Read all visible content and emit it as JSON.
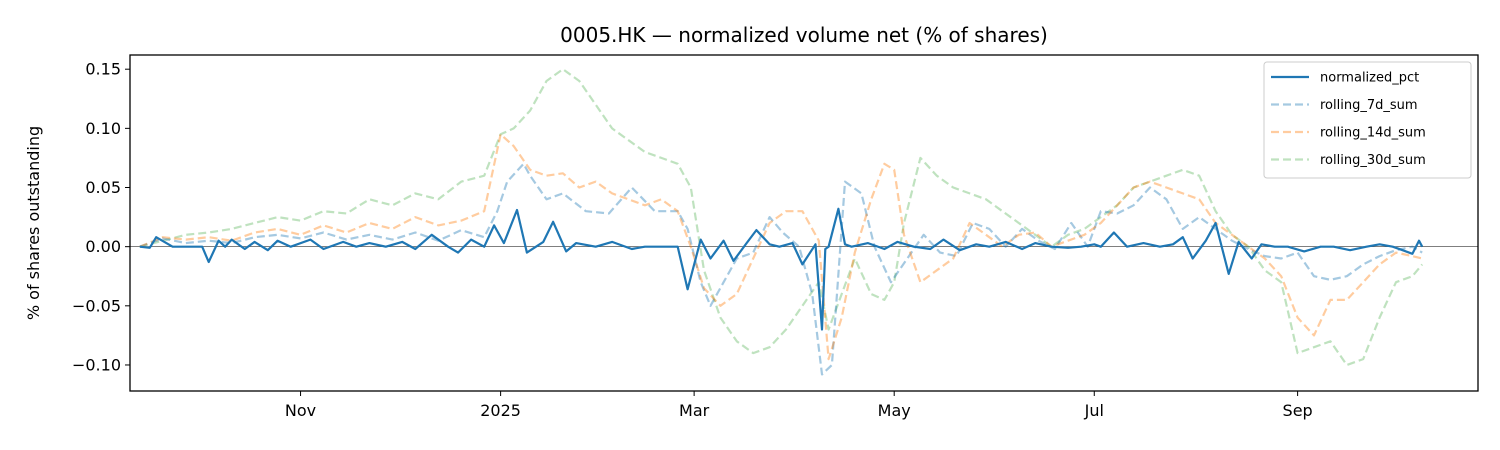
{
  "chart_data": {
    "type": "line",
    "title": "0005.HK — normalized volume net (% of shares)",
    "xlabel": "",
    "ylabel": "% of shares outstanding",
    "xlim": [
      "2024-09-10",
      "2025-10-26"
    ],
    "ylim": [
      -0.122,
      0.162
    ],
    "x_ticks": [
      {
        "date": "2024-11-01",
        "label": "Nov"
      },
      {
        "date": "2025-01-01",
        "label": "2025"
      },
      {
        "date": "2025-03-01",
        "label": "Mar"
      },
      {
        "date": "2025-05-01",
        "label": "May"
      },
      {
        "date": "2025-07-01",
        "label": "Jul"
      },
      {
        "date": "2025-09-01",
        "label": "Sep"
      }
    ],
    "y_ticks": [
      {
        "value": 0.15,
        "label": "0.15"
      },
      {
        "value": 0.1,
        "label": "0.10"
      },
      {
        "value": 0.05,
        "label": "0.05"
      },
      {
        "value": 0.0,
        "label": "0.00"
      },
      {
        "value": -0.05,
        "label": "−0.05"
      },
      {
        "value": -0.1,
        "label": "−0.10"
      }
    ],
    "zero_line": true,
    "grid": false,
    "legend_position": "top-right",
    "series": [
      {
        "name": "normalized_pct",
        "color": "#1f77b4",
        "dash": "solid",
        "opacity": 1.0,
        "width": 2.2,
        "x": [
          "2024-09-13",
          "2024-09-16",
          "2024-09-18",
          "2024-09-23",
          "2024-09-27",
          "2024-10-02",
          "2024-10-04",
          "2024-10-07",
          "2024-10-09",
          "2024-10-11",
          "2024-10-15",
          "2024-10-18",
          "2024-10-22",
          "2024-10-25",
          "2024-10-29",
          "2024-11-04",
          "2024-11-08",
          "2024-11-14",
          "2024-11-18",
          "2024-11-22",
          "2024-11-27",
          "2024-12-02",
          "2024-12-06",
          "2024-12-11",
          "2024-12-16",
          "2024-12-19",
          "2024-12-23",
          "2024-12-27",
          "2024-12-30",
          "2025-01-02",
          "2025-01-06",
          "2025-01-09",
          "2025-01-14",
          "2025-01-17",
          "2025-01-21",
          "2025-01-24",
          "2025-01-30",
          "2025-02-04",
          "2025-02-10",
          "2025-02-14",
          "2025-02-19",
          "2025-02-24",
          "2025-02-27",
          "2025-03-03",
          "2025-03-06",
          "2025-03-10",
          "2025-03-13",
          "2025-03-17",
          "2025-03-20",
          "2025-03-24",
          "2025-03-27",
          "2025-03-31",
          "2025-04-03",
          "2025-04-07",
          "2025-04-09",
          "2025-04-10",
          "2025-04-11",
          "2025-04-14",
          "2025-04-16",
          "2025-04-18",
          "2025-04-23",
          "2025-04-28",
          "2025-05-02",
          "2025-05-07",
          "2025-05-12",
          "2025-05-16",
          "2025-05-21",
          "2025-05-26",
          "2025-05-30",
          "2025-06-04",
          "2025-06-09",
          "2025-06-13",
          "2025-06-18",
          "2025-06-23",
          "2025-06-27",
          "2025-07-01",
          "2025-07-03",
          "2025-07-07",
          "2025-07-11",
          "2025-07-16",
          "2025-07-21",
          "2025-07-25",
          "2025-07-28",
          "2025-07-31",
          "2025-08-04",
          "2025-08-07",
          "2025-08-11",
          "2025-08-14",
          "2025-08-18",
          "2025-08-21",
          "2025-08-25",
          "2025-08-29",
          "2025-09-03",
          "2025-09-08",
          "2025-09-12",
          "2025-09-17",
          "2025-09-22",
          "2025-09-26",
          "2025-09-30",
          "2025-10-03",
          "2025-10-06",
          "2025-10-08",
          "2025-10-09"
        ],
        "y": [
          0.0,
          -0.001,
          0.008,
          0.0,
          0.0,
          0.0,
          -0.013,
          0.005,
          0.0,
          0.006,
          -0.002,
          0.004,
          -0.003,
          0.005,
          0.0,
          0.006,
          -0.002,
          0.004,
          0.0,
          0.003,
          0.0,
          0.004,
          -0.002,
          0.01,
          0.0,
          -0.005,
          0.006,
          0.0,
          0.018,
          0.003,
          0.031,
          -0.005,
          0.004,
          0.021,
          -0.004,
          0.003,
          0.0,
          0.004,
          -0.002,
          0.0,
          0.0,
          0.0,
          -0.036,
          0.006,
          -0.01,
          0.005,
          -0.012,
          0.003,
          0.014,
          0.002,
          0.0,
          0.003,
          -0.015,
          0.002,
          -0.07,
          -0.002,
          0.0,
          0.032,
          0.002,
          0.0,
          0.003,
          -0.002,
          0.004,
          0.0,
          -0.002,
          0.006,
          -0.003,
          0.002,
          0.0,
          0.004,
          -0.002,
          0.003,
          0.0,
          -0.001,
          0.0,
          0.002,
          0.0,
          0.012,
          0.0,
          0.003,
          0.0,
          0.002,
          0.008,
          -0.01,
          0.005,
          0.02,
          -0.023,
          0.004,
          -0.01,
          0.002,
          0.0,
          0.0,
          -0.004,
          0.0,
          0.0,
          -0.003,
          0.0,
          0.002,
          0.0,
          -0.003,
          -0.006,
          0.005,
          0.0
        ]
      },
      {
        "name": "rolling_7d_sum",
        "color": "#1f77b4",
        "dash": "dashed",
        "opacity": 0.4,
        "width": 2.2,
        "x": [
          "2024-09-13",
          "2024-09-20",
          "2024-09-27",
          "2024-10-04",
          "2024-10-11",
          "2024-10-18",
          "2024-10-25",
          "2024-11-01",
          "2024-11-08",
          "2024-11-15",
          "2024-11-22",
          "2024-11-29",
          "2024-12-06",
          "2024-12-13",
          "2024-12-20",
          "2024-12-27",
          "2024-12-31",
          "2025-01-03",
          "2025-01-08",
          "2025-01-10",
          "2025-01-15",
          "2025-01-20",
          "2025-01-27",
          "2025-02-03",
          "2025-02-10",
          "2025-02-17",
          "2025-02-24",
          "2025-02-27",
          "2025-03-03",
          "2025-03-06",
          "2025-03-10",
          "2025-03-14",
          "2025-03-19",
          "2025-03-24",
          "2025-03-28",
          "2025-04-02",
          "2025-04-06",
          "2025-04-09",
          "2025-04-12",
          "2025-04-16",
          "2025-04-21",
          "2025-04-25",
          "2025-04-30",
          "2025-05-05",
          "2025-05-10",
          "2025-05-15",
          "2025-05-20",
          "2025-05-25",
          "2025-05-30",
          "2025-06-04",
          "2025-06-09",
          "2025-06-14",
          "2025-06-19",
          "2025-06-24",
          "2025-06-29",
          "2025-07-03",
          "2025-07-08",
          "2025-07-13",
          "2025-07-18",
          "2025-07-23",
          "2025-07-28",
          "2025-08-02",
          "2025-08-07",
          "2025-08-12",
          "2025-08-17",
          "2025-08-22",
          "2025-08-27",
          "2025-09-01",
          "2025-09-06",
          "2025-09-11",
          "2025-09-16",
          "2025-09-21",
          "2025-09-26",
          "2025-10-01",
          "2025-10-06",
          "2025-10-09"
        ],
        "y": [
          0.0,
          0.007,
          0.003,
          0.005,
          0.003,
          0.008,
          0.01,
          0.007,
          0.012,
          0.006,
          0.01,
          0.006,
          0.012,
          0.005,
          0.014,
          0.008,
          0.03,
          0.055,
          0.07,
          0.06,
          0.04,
          0.045,
          0.03,
          0.028,
          0.05,
          0.03,
          0.03,
          0.015,
          -0.03,
          -0.05,
          -0.03,
          -0.01,
          -0.005,
          0.025,
          0.012,
          0.0,
          -0.04,
          -0.108,
          -0.1,
          0.055,
          0.045,
          0.0,
          -0.03,
          -0.01,
          0.01,
          -0.005,
          -0.008,
          0.02,
          0.015,
          0.0,
          0.015,
          0.005,
          -0.002,
          0.02,
          0.0,
          0.03,
          0.028,
          0.035,
          0.05,
          0.04,
          0.015,
          0.025,
          0.015,
          0.005,
          -0.002,
          -0.008,
          -0.01,
          -0.005,
          -0.025,
          -0.028,
          -0.025,
          -0.015,
          -0.008,
          -0.003,
          0.0,
          -0.005
        ]
      },
      {
        "name": "rolling_14d_sum",
        "color": "#ff7f0e",
        "dash": "dashed",
        "opacity": 0.4,
        "width": 2.2,
        "x": [
          "2024-09-13",
          "2024-09-20",
          "2024-09-27",
          "2024-10-04",
          "2024-10-11",
          "2024-10-18",
          "2024-10-25",
          "2024-11-01",
          "2024-11-08",
          "2024-11-15",
          "2024-11-22",
          "2024-11-29",
          "2024-12-06",
          "2024-12-13",
          "2024-12-20",
          "2024-12-27",
          "2025-01-01",
          "2025-01-05",
          "2025-01-10",
          "2025-01-15",
          "2025-01-20",
          "2025-01-25",
          "2025-01-30",
          "2025-02-04",
          "2025-02-09",
          "2025-02-14",
          "2025-02-19",
          "2025-02-24",
          "2025-02-28",
          "2025-03-04",
          "2025-03-09",
          "2025-03-14",
          "2025-03-19",
          "2025-03-24",
          "2025-03-29",
          "2025-04-03",
          "2025-04-08",
          "2025-04-11",
          "2025-04-15",
          "2025-04-19",
          "2025-04-24",
          "2025-04-28",
          "2025-05-01",
          "2025-05-04",
          "2025-05-09",
          "2025-05-14",
          "2025-05-19",
          "2025-05-24",
          "2025-05-29",
          "2025-06-03",
          "2025-06-08",
          "2025-06-13",
          "2025-06-18",
          "2025-06-23",
          "2025-06-28",
          "2025-07-03",
          "2025-07-08",
          "2025-07-13",
          "2025-07-18",
          "2025-07-23",
          "2025-07-28",
          "2025-08-02",
          "2025-08-07",
          "2025-08-12",
          "2025-08-17",
          "2025-08-22",
          "2025-08-27",
          "2025-09-01",
          "2025-09-06",
          "2025-09-11",
          "2025-09-16",
          "2025-09-21",
          "2025-09-26",
          "2025-10-01",
          "2025-10-06",
          "2025-10-09"
        ],
        "y": [
          0.0,
          0.008,
          0.006,
          0.008,
          0.005,
          0.012,
          0.015,
          0.01,
          0.018,
          0.012,
          0.02,
          0.015,
          0.025,
          0.018,
          0.022,
          0.03,
          0.095,
          0.085,
          0.065,
          0.06,
          0.062,
          0.05,
          0.055,
          0.045,
          0.04,
          0.035,
          0.04,
          0.03,
          0.0,
          -0.035,
          -0.05,
          -0.04,
          -0.01,
          0.02,
          0.03,
          0.03,
          0.005,
          -0.095,
          -0.06,
          -0.005,
          0.04,
          0.07,
          0.065,
          0.01,
          -0.03,
          -0.02,
          -0.01,
          0.02,
          0.01,
          0.0,
          0.01,
          0.012,
          0.0,
          0.005,
          0.01,
          0.02,
          0.035,
          0.05,
          0.055,
          0.05,
          0.045,
          0.04,
          0.02,
          0.01,
          0.0,
          -0.01,
          -0.025,
          -0.06,
          -0.075,
          -0.045,
          -0.045,
          -0.03,
          -0.015,
          -0.005,
          -0.008,
          -0.01
        ]
      },
      {
        "name": "rolling_30d_sum",
        "color": "#2ca02c",
        "dash": "dashed",
        "opacity": 0.3,
        "width": 2.2,
        "x": [
          "2024-09-13",
          "2024-09-20",
          "2024-09-27",
          "2024-10-04",
          "2024-10-11",
          "2024-10-18",
          "2024-10-25",
          "2024-11-01",
          "2024-11-08",
          "2024-11-15",
          "2024-11-22",
          "2024-11-29",
          "2024-12-06",
          "2024-12-13",
          "2024-12-20",
          "2024-12-27",
          "2025-01-01",
          "2025-01-05",
          "2025-01-10",
          "2025-01-15",
          "2025-01-20",
          "2025-01-25",
          "2025-01-30",
          "2025-02-04",
          "2025-02-09",
          "2025-02-14",
          "2025-02-19",
          "2025-02-24",
          "2025-02-28",
          "2025-03-04",
          "2025-03-09",
          "2025-03-14",
          "2025-03-19",
          "2025-03-24",
          "2025-03-29",
          "2025-04-03",
          "2025-04-08",
          "2025-04-11",
          "2025-04-15",
          "2025-04-19",
          "2025-04-24",
          "2025-04-28",
          "2025-05-01",
          "2025-05-04",
          "2025-05-09",
          "2025-05-14",
          "2025-05-19",
          "2025-05-24",
          "2025-05-29",
          "2025-06-03",
          "2025-06-08",
          "2025-06-13",
          "2025-06-18",
          "2025-06-23",
          "2025-06-28",
          "2025-07-03",
          "2025-07-08",
          "2025-07-13",
          "2025-07-18",
          "2025-07-23",
          "2025-07-28",
          "2025-08-02",
          "2025-08-07",
          "2025-08-12",
          "2025-08-17",
          "2025-08-22",
          "2025-08-27",
          "2025-09-01",
          "2025-09-06",
          "2025-09-11",
          "2025-09-16",
          "2025-09-21",
          "2025-09-26",
          "2025-10-01",
          "2025-10-06",
          "2025-10-09"
        ],
        "y": [
          0.0,
          0.005,
          0.01,
          0.012,
          0.015,
          0.02,
          0.025,
          0.022,
          0.03,
          0.028,
          0.04,
          0.035,
          0.045,
          0.04,
          0.055,
          0.06,
          0.095,
          0.1,
          0.115,
          0.14,
          0.15,
          0.14,
          0.12,
          0.1,
          0.09,
          0.08,
          0.075,
          0.07,
          0.05,
          -0.02,
          -0.06,
          -0.08,
          -0.09,
          -0.085,
          -0.07,
          -0.05,
          -0.03,
          -0.07,
          -0.04,
          -0.01,
          -0.04,
          -0.045,
          -0.03,
          0.02,
          0.075,
          0.06,
          0.05,
          0.045,
          0.04,
          0.03,
          0.02,
          0.01,
          0.0,
          0.01,
          0.015,
          0.025,
          0.035,
          0.05,
          0.055,
          0.06,
          0.065,
          0.06,
          0.03,
          0.01,
          0.0,
          -0.02,
          -0.03,
          -0.09,
          -0.085,
          -0.08,
          -0.1,
          -0.095,
          -0.06,
          -0.03,
          -0.025,
          -0.015
        ]
      }
    ]
  }
}
